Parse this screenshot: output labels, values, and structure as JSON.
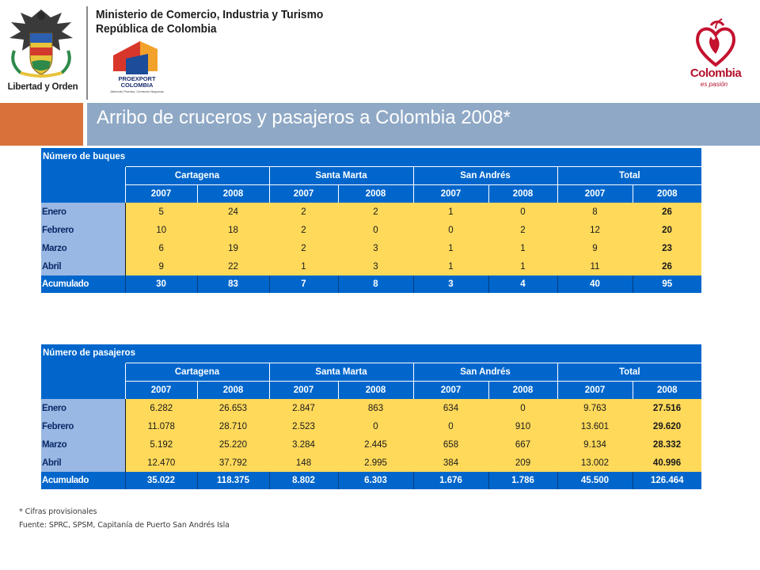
{
  "header": {
    "coat_caption": "Libertad y Orden",
    "ministry_line1": "Ministerio de Comercio, Industria y Turismo",
    "ministry_line2": "República de Colombia",
    "proexport_name_line1": "PROEXPORT",
    "proexport_name_line2": "COLOMBIA",
    "proexport_tagline": "Abriendo Puertos, Cerrando Negocios",
    "brand_name": "Colombia",
    "brand_tagline": "es pasión"
  },
  "title": "Arribo de cruceros y pasajeros a Colombia 2008*",
  "colors": {
    "orange_accent": "#d9723a",
    "title_bar": "#8fa8c5",
    "table_header": "#0066cc",
    "row_label": "#9ab8e4",
    "row_fill": "#ffd95a"
  },
  "tables": [
    {
      "title": "Número de buques",
      "ports": [
        "Cartagena",
        "Santa Marta",
        "San Andrés",
        "Total"
      ],
      "years": [
        "2007",
        "2008",
        "2007",
        "2008",
        "2007",
        "2008",
        "2007",
        "2008"
      ],
      "rows": [
        {
          "label": "Enero",
          "values": [
            "5",
            "24",
            "2",
            "2",
            "1",
            "0",
            "8",
            "26"
          ]
        },
        {
          "label": "Febrero",
          "values": [
            "10",
            "18",
            "2",
            "0",
            "0",
            "2",
            "12",
            "20"
          ]
        },
        {
          "label": "Marzo",
          "values": [
            "6",
            "19",
            "2",
            "3",
            "1",
            "1",
            "9",
            "23"
          ]
        },
        {
          "label": "Abril",
          "values": [
            "9",
            "22",
            "1",
            "3",
            "1",
            "1",
            "11",
            "26"
          ]
        }
      ],
      "total": {
        "label": "Acumulado",
        "values": [
          "30",
          "83",
          "7",
          "8",
          "3",
          "4",
          "40",
          "95"
        ]
      }
    },
    {
      "title": "Número de pasajeros",
      "ports": [
        "Cartagena",
        "Santa Marta",
        "San Andrés",
        "Total"
      ],
      "years": [
        "2007",
        "2008",
        "2007",
        "2008",
        "2007",
        "2008",
        "2007",
        "2008"
      ],
      "rows": [
        {
          "label": "Enero",
          "values": [
            "6.282",
            "26.653",
            "2.847",
            "863",
            "634",
            "0",
            "9.763",
            "27.516"
          ]
        },
        {
          "label": "Febrero",
          "values": [
            "11.078",
            "28.710",
            "2.523",
            "0",
            "0",
            "910",
            "13.601",
            "29.620"
          ]
        },
        {
          "label": "Marzo",
          "values": [
            "5.192",
            "25.220",
            "3.284",
            "2.445",
            "658",
            "667",
            "9.134",
            "28.332"
          ]
        },
        {
          "label": "Abril",
          "values": [
            "12.470",
            "37.792",
            "148",
            "2.995",
            "384",
            "209",
            "13.002",
            "40.996"
          ]
        }
      ],
      "total": {
        "label": "Acumulado",
        "values": [
          "35.022",
          "118.375",
          "8.802",
          "6.303",
          "1.676",
          "1.786",
          "45.500",
          "126.464"
        ]
      }
    }
  ],
  "footnotes": {
    "provisional": "* Cifras provisionales",
    "source": "Fuente: SPRC, SPSM, Capitanía de Puerto San Andrés Isla"
  }
}
